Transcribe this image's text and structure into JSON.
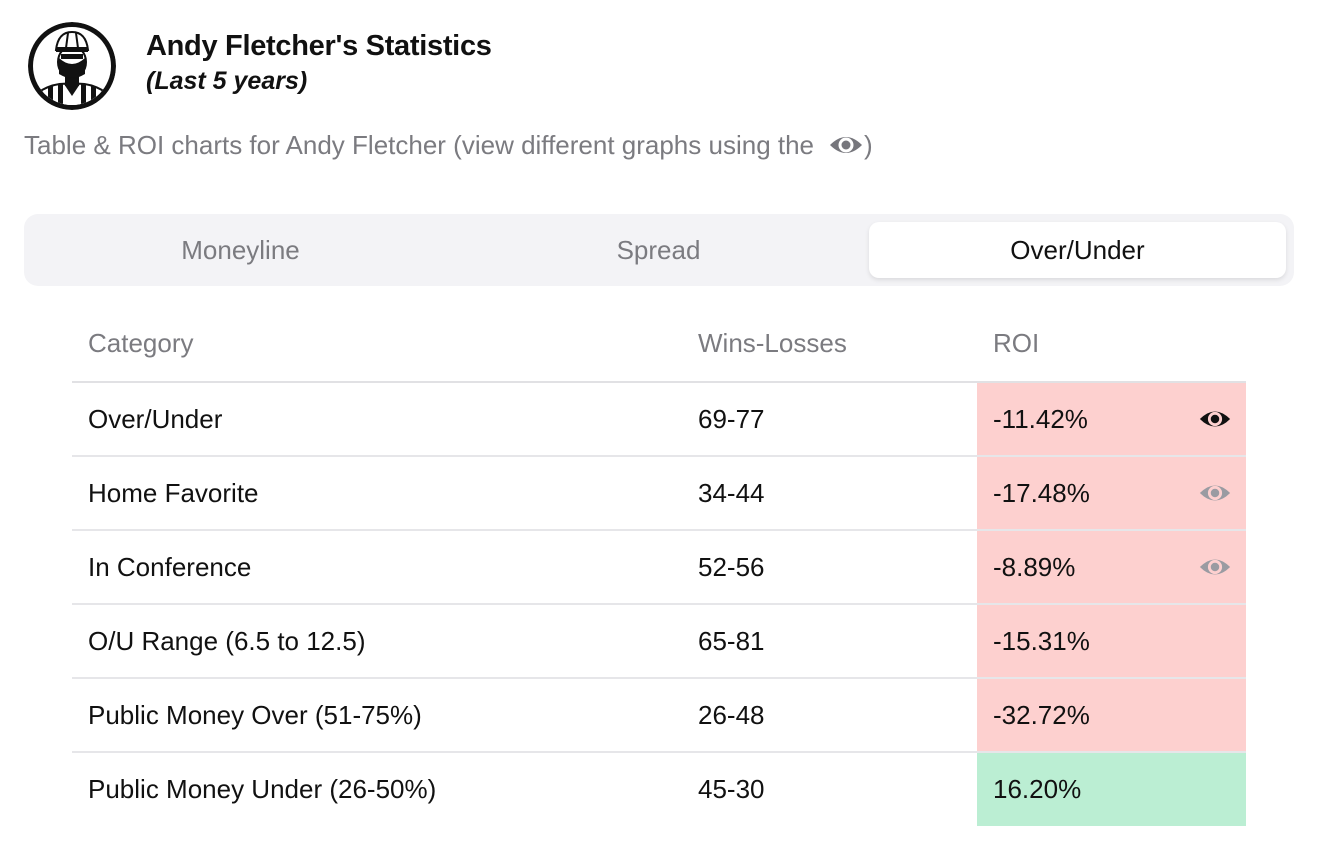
{
  "header": {
    "title": "Andy Fletcher's Statistics",
    "subtitle": "(Last 5 years)",
    "avatar_icon": "referee-avatar"
  },
  "description": {
    "text": "Table & ROI charts for Andy Fletcher (view different graphs using the",
    "icon": "eye-icon",
    "closing": ")"
  },
  "tabs": [
    {
      "label": "Moneyline",
      "active": false
    },
    {
      "label": "Spread",
      "active": false
    },
    {
      "label": "Over/Under",
      "active": true
    }
  ],
  "table": {
    "columns": [
      "Category",
      "Wins-Losses",
      "ROI"
    ],
    "rows": [
      {
        "category": "Over/Under",
        "record": "69-77",
        "roi": "-11.42%",
        "status": "negative",
        "eye": "active"
      },
      {
        "category": "Home Favorite",
        "record": "34-44",
        "roi": "-17.48%",
        "status": "negative",
        "eye": "inactive"
      },
      {
        "category": "In Conference",
        "record": "52-56",
        "roi": "-8.89%",
        "status": "negative",
        "eye": "inactive"
      },
      {
        "category": "O/U Range (6.5 to 12.5)",
        "record": "65-81",
        "roi": "-15.31%",
        "status": "negative",
        "eye": "none"
      },
      {
        "category": "Public Money Over (51-75%)",
        "record": "26-48",
        "roi": "-32.72%",
        "status": "negative",
        "eye": "none"
      },
      {
        "category": "Public Money Under (26-50%)",
        "record": "45-30",
        "roi": "16.20%",
        "status": "positive",
        "eye": "none"
      }
    ]
  },
  "colors": {
    "negative_bg": "#fdd0cf",
    "positive_bg": "#bbeed3",
    "muted_text": "#7b7b80",
    "eye_active": "#111111",
    "eye_inactive": "#9a9ba2"
  }
}
